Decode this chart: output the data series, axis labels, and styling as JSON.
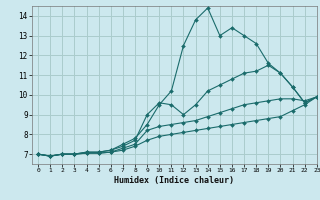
{
  "title": "",
  "xlabel": "Humidex (Indice chaleur)",
  "ylabel": "",
  "background_color": "#cce8ee",
  "grid_color": "#aacccc",
  "line_color": "#1a6b6b",
  "xlim": [
    -0.5,
    23
  ],
  "ylim": [
    6.5,
    14.5
  ],
  "xticks": [
    0,
    1,
    2,
    3,
    4,
    5,
    6,
    7,
    8,
    9,
    10,
    11,
    12,
    13,
    14,
    15,
    16,
    17,
    18,
    19,
    20,
    21,
    22,
    23
  ],
  "yticks": [
    7,
    8,
    9,
    10,
    11,
    12,
    13,
    14
  ],
  "lines": [
    {
      "x": [
        0,
        1,
        2,
        3,
        4,
        5,
        6,
        7,
        8,
        9,
        10,
        11,
        12,
        13,
        14,
        15,
        16,
        17,
        18,
        19,
        20,
        21,
        22,
        23
      ],
      "y": [
        7,
        6.9,
        7.0,
        7.0,
        7.1,
        7.1,
        7.2,
        7.5,
        7.8,
        8.5,
        9.5,
        10.2,
        12.5,
        13.8,
        14.4,
        13.0,
        13.4,
        13.0,
        12.6,
        11.6,
        11.1,
        10.4,
        9.6,
        9.9
      ]
    },
    {
      "x": [
        0,
        1,
        2,
        3,
        4,
        5,
        6,
        7,
        8,
        9,
        10,
        11,
        12,
        13,
        14,
        15,
        16,
        17,
        18,
        19,
        20,
        21,
        22,
        23
      ],
      "y": [
        7,
        6.9,
        7.0,
        7.0,
        7.1,
        7.1,
        7.2,
        7.4,
        7.7,
        9.0,
        9.6,
        9.5,
        9.0,
        9.5,
        10.2,
        10.5,
        10.8,
        11.1,
        11.2,
        11.5,
        11.1,
        10.4,
        9.6,
        9.9
      ]
    },
    {
      "x": [
        0,
        1,
        2,
        3,
        4,
        5,
        6,
        7,
        8,
        9,
        10,
        11,
        12,
        13,
        14,
        15,
        16,
        17,
        18,
        19,
        20,
        21,
        22,
        23
      ],
      "y": [
        7,
        6.9,
        7.0,
        7.0,
        7.05,
        7.05,
        7.1,
        7.3,
        7.5,
        8.2,
        8.4,
        8.5,
        8.6,
        8.7,
        8.9,
        9.1,
        9.3,
        9.5,
        9.6,
        9.7,
        9.8,
        9.8,
        9.7,
        9.9
      ]
    },
    {
      "x": [
        0,
        1,
        2,
        3,
        4,
        5,
        6,
        7,
        8,
        9,
        10,
        11,
        12,
        13,
        14,
        15,
        16,
        17,
        18,
        19,
        20,
        21,
        22,
        23
      ],
      "y": [
        7,
        6.9,
        7.0,
        7.0,
        7.05,
        7.05,
        7.1,
        7.2,
        7.4,
        7.7,
        7.9,
        8.0,
        8.1,
        8.2,
        8.3,
        8.4,
        8.5,
        8.6,
        8.7,
        8.8,
        8.9,
        9.2,
        9.5,
        9.9
      ]
    }
  ]
}
